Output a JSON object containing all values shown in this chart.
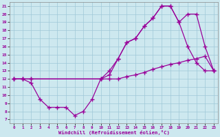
{
  "background_color": "#cde8ef",
  "grid_color": "#9ec8d8",
  "line_color": "#990099",
  "xlim": [
    -0.5,
    23.5
  ],
  "ylim": [
    6.5,
    21.5
  ],
  "xlabel": "Windchill (Refroidissement éolien,°C)",
  "xticks": [
    0,
    1,
    2,
    3,
    4,
    5,
    6,
    7,
    8,
    9,
    10,
    11,
    12,
    13,
    14,
    15,
    16,
    17,
    18,
    19,
    20,
    21,
    22,
    23
  ],
  "yticks": [
    7,
    8,
    9,
    10,
    11,
    12,
    13,
    14,
    15,
    16,
    17,
    18,
    19,
    20,
    21
  ],
  "series": [
    {
      "x": [
        0,
        1,
        2,
        10,
        11,
        12,
        13,
        14,
        15,
        16,
        17,
        18,
        19,
        20,
        21,
        22,
        23
      ],
      "y": [
        12,
        12,
        12,
        12,
        12,
        12,
        12.3,
        12.5,
        12.8,
        13.2,
        13.5,
        13.8,
        14,
        14.3,
        14.5,
        14.8,
        13
      ]
    },
    {
      "x": [
        0,
        1,
        2,
        10,
        11,
        12,
        13,
        14,
        15,
        16,
        17,
        18,
        19,
        20,
        21,
        22,
        23
      ],
      "y": [
        12,
        12,
        12,
        12,
        13,
        14.5,
        16.5,
        17,
        18.5,
        19.5,
        21,
        21,
        19,
        20,
        20,
        16,
        13
      ]
    },
    {
      "x": [
        0,
        1,
        2,
        3,
        4,
        5,
        6,
        7,
        8,
        9,
        10,
        11,
        12,
        13,
        14,
        15,
        16,
        17,
        18,
        19,
        20,
        21,
        22,
        23
      ],
      "y": [
        12,
        12,
        11.5,
        9.5,
        8.5,
        8.5,
        8.5,
        7.5,
        8.0,
        9.5,
        12,
        12.5,
        14.5,
        16.5,
        17,
        18.5,
        19.5,
        21,
        21,
        19,
        16,
        14,
        13,
        13
      ]
    }
  ]
}
